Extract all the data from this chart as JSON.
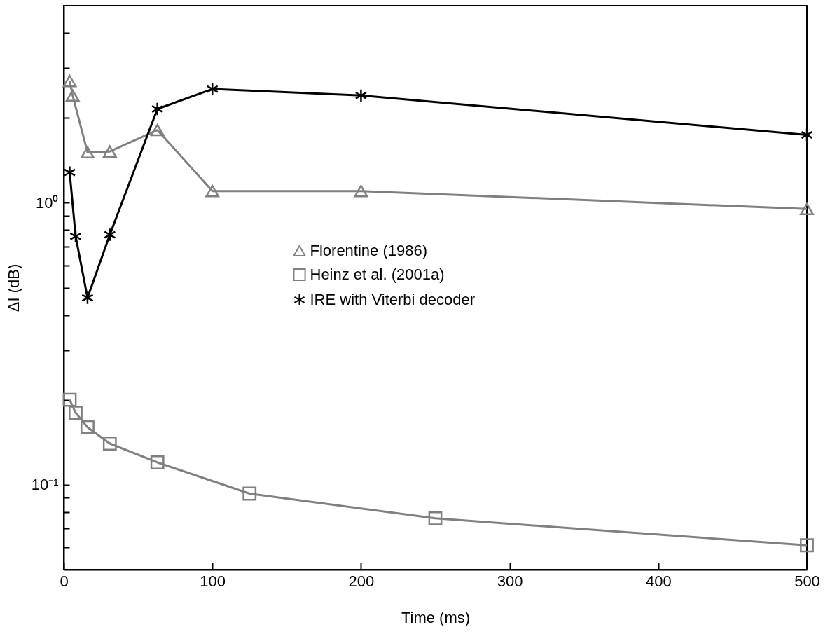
{
  "chart_data": {
    "type": "line",
    "xlabel": "Time (ms)",
    "ylabel": "ΔI (dB)",
    "log": "y",
    "xlim": [
      0,
      500
    ],
    "xticks": [
      0,
      100,
      200,
      300,
      400,
      500
    ],
    "ylim": [
      0.05,
      5
    ],
    "yticks": [
      {
        "value": 0.06,
        "label": null
      },
      {
        "value": 0.07,
        "label": null
      },
      {
        "value": 0.08,
        "label": null
      },
      {
        "value": 0.09,
        "label": null
      },
      {
        "value": 0.1,
        "label": "10⁻¹"
      },
      {
        "value": 0.2,
        "label": null
      },
      {
        "value": 0.3,
        "label": null
      },
      {
        "value": 0.4,
        "label": null
      },
      {
        "value": 0.5,
        "label": null
      },
      {
        "value": 0.6,
        "label": null
      },
      {
        "value": 0.7,
        "label": null
      },
      {
        "value": 0.8,
        "label": null
      },
      {
        "value": 0.9,
        "label": null
      },
      {
        "value": 1,
        "label": "10⁰"
      },
      {
        "value": 2,
        "label": null
      },
      {
        "value": 3,
        "label": null
      },
      {
        "value": 4,
        "label": null
      }
    ],
    "grid": false,
    "legend": "center",
    "line_style": "solid",
    "series": [
      {
        "name": "Florentine (1986)",
        "color": "#808080",
        "marker": "triangle",
        "x": [
          4,
          6,
          16,
          31,
          63,
          100,
          200,
          500
        ],
        "values": [
          2.7,
          2.4,
          1.51,
          1.52,
          1.81,
          1.1,
          1.1,
          0.95
        ]
      },
      {
        "name": "Heinz et al. (2001a)",
        "color": "#808080",
        "marker": "square",
        "x": [
          4,
          8,
          16,
          31,
          63,
          125,
          250,
          500
        ],
        "values": [
          0.2,
          0.18,
          0.16,
          0.14,
          0.12,
          0.093,
          0.076,
          0.061
        ]
      },
      {
        "name": "IRE with Viterbi decoder",
        "color": "#000000",
        "marker": "cross",
        "x": [
          4,
          8,
          16,
          31,
          63,
          100,
          200,
          500
        ],
        "values": [
          1.28,
          0.76,
          0.46,
          0.77,
          2.15,
          2.53,
          2.4,
          1.74
        ]
      }
    ]
  }
}
